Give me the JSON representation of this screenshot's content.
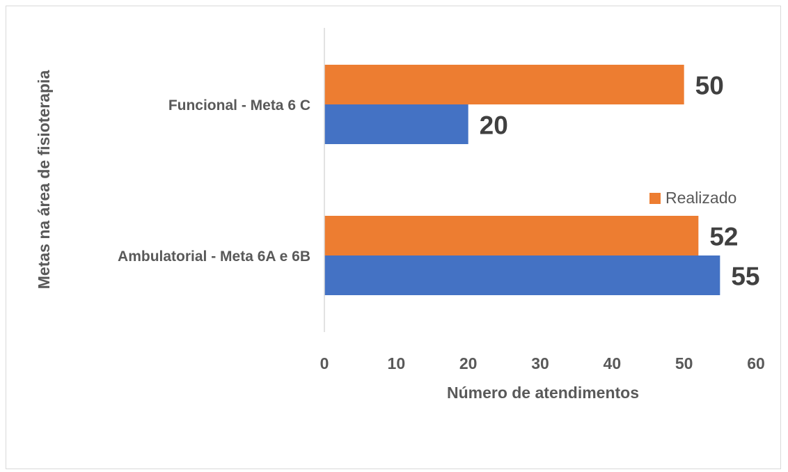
{
  "chart_data": {
    "type": "bar",
    "orientation": "horizontal",
    "title": "",
    "xlabel": "Número de atendimentos",
    "ylabel": "Metas na  área de fisioterapia",
    "categories": [
      "Ambulatorial - Meta 6A e 6B",
      "Funcional - Meta 6 C"
    ],
    "series": [
      {
        "name": "",
        "values": [
          55,
          20
        ],
        "color": "#4472C4"
      },
      {
        "name": "Realizado",
        "values": [
          52,
          50
        ],
        "color": "#ED7D31"
      }
    ],
    "xlim": [
      0,
      60
    ],
    "xticks": [
      0,
      10,
      20,
      30,
      40,
      50,
      60
    ],
    "xtick_labels": [
      "0",
      "10",
      "20",
      "30",
      "40",
      "50",
      "60"
    ],
    "data_labels": true,
    "grid": false,
    "legend": {
      "position": "right",
      "entries": [
        "Realizado"
      ]
    }
  }
}
